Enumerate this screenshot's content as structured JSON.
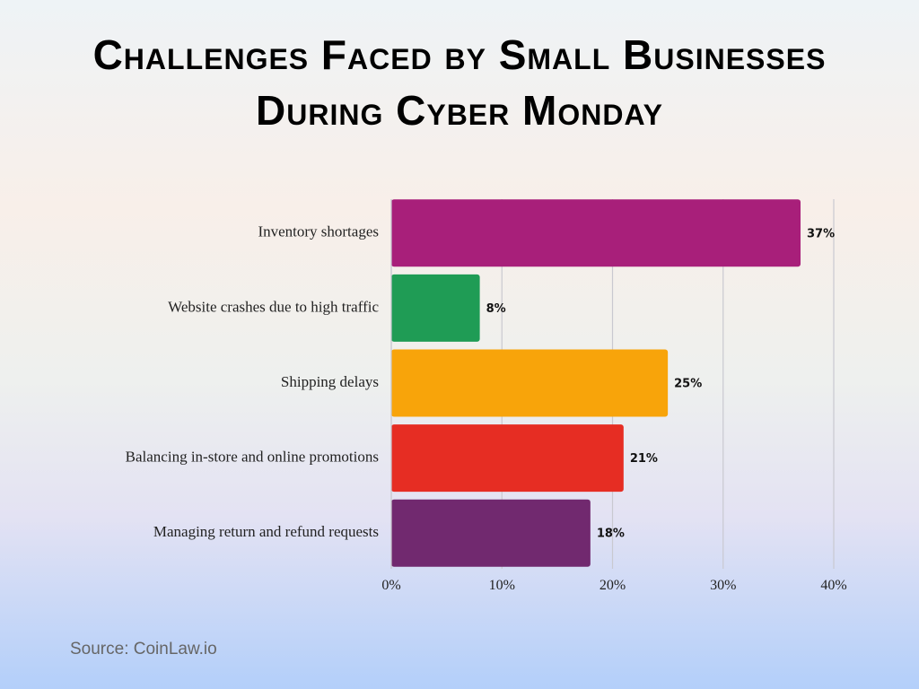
{
  "chart_data": {
    "type": "hbar",
    "title": "Challenges Faced by Small Businesses During Cyber Monday",
    "categories": [
      "Inventory shortages",
      "Website crashes due to high traffic",
      "Shipping delays",
      "Balancing in-store and online promotions",
      "Managing return and refund requests"
    ],
    "values": [
      37,
      8,
      25,
      21,
      18
    ],
    "value_labels": [
      "37%",
      "8%",
      "25%",
      "21%",
      "18%"
    ],
    "colors": [
      "#a81f7a",
      "#1f9c55",
      "#f8a40a",
      "#e62d23",
      "#71296f"
    ],
    "xlim": [
      0,
      40
    ],
    "xticks": [
      {
        "value": 0,
        "label": "0%"
      },
      {
        "value": 10,
        "label": "10%"
      },
      {
        "value": 20,
        "label": "20%"
      },
      {
        "value": 30,
        "label": "30%"
      },
      {
        "value": 40,
        "label": "40%"
      }
    ],
    "grid": true,
    "source": "Source: CoinLaw.io"
  }
}
